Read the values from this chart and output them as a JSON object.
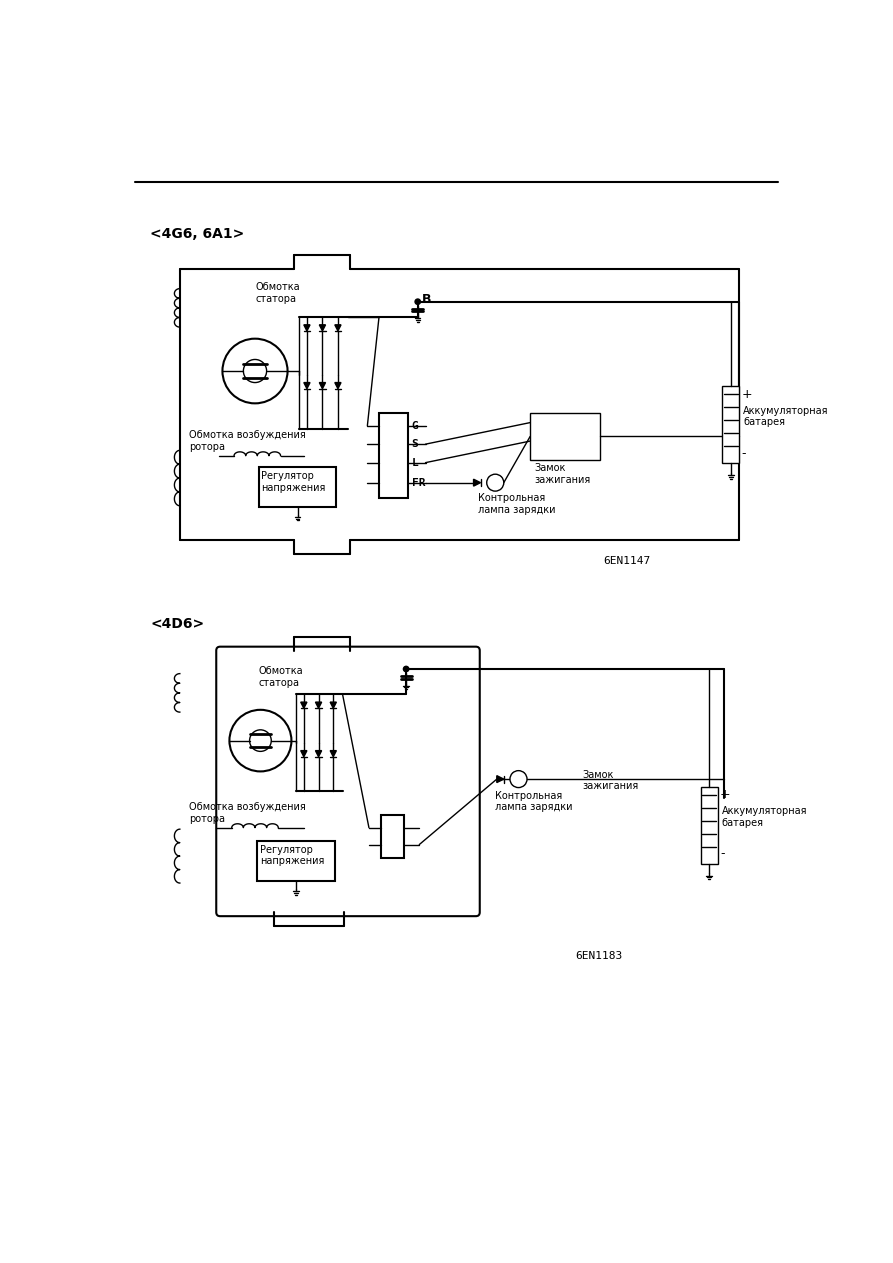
{
  "bg_color": "#ffffff",
  "label1": "<4G6, 6A1>",
  "label2": "<4D6>",
  "fig_id1": "6EN1147",
  "fig_id2": "6EN1183",
  "text_obm_stat": "Обмотка\nстатора",
  "text_obm_vozb1": "Обмотка возбуждения\nротора",
  "text_obm_vozb2": "Обмотка возбуждения\nротора",
  "text_reg": "Регулятор\nнапряжения",
  "text_kontrol": "Контрольная\nлампа зарядки",
  "text_zamok": "Замок\nзажигания",
  "text_akkum": "Аккумуляторная\nбатарея",
  "fs": 7,
  "fs_label": 10,
  "lw": 1.0,
  "lw2": 1.5
}
